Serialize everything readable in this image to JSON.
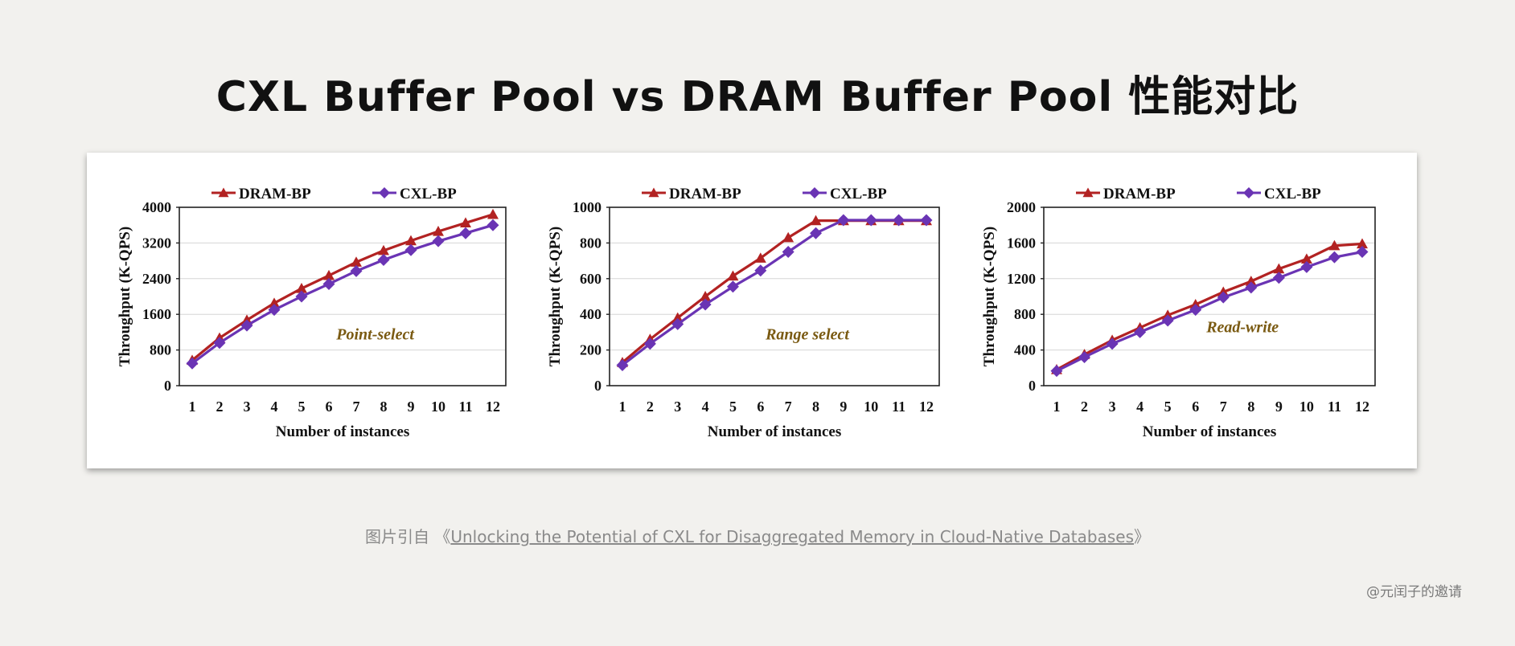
{
  "title": "CXL Buffer Pool vs DRAM Buffer Pool 性能对比",
  "caption": {
    "prefix": "图片引自",
    "open_quote": "《",
    "link_text": "Unlocking the Potential of CXL for Disaggregated Memory in Cloud-Native Databases",
    "close_quote": "》"
  },
  "watermark": "@元闰子的邀请",
  "colors": {
    "dram": "#b22222",
    "cxl": "#6a34b4",
    "annotation": "#7a5a12"
  },
  "chart_data": [
    {
      "type": "line",
      "annotation": "Point-select",
      "xlabel": "Number of instances",
      "ylabel": "Throughput (K-QPS)",
      "x": [
        1,
        2,
        3,
        4,
        5,
        6,
        7,
        8,
        9,
        10,
        11,
        12
      ],
      "ylim": [
        0,
        4000
      ],
      "yticks": [
        0,
        800,
        1600,
        2400,
        3200,
        4000
      ],
      "legend_position": "top",
      "grid": "horizontal",
      "series": [
        {
          "name": "DRAM-BP",
          "marker": "triangle",
          "values": [
            570,
            1070,
            1470,
            1850,
            2180,
            2470,
            2770,
            3030,
            3250,
            3460,
            3650,
            3840
          ]
        },
        {
          "name": "CXL-BP",
          "marker": "diamond",
          "values": [
            500,
            960,
            1350,
            1700,
            2000,
            2280,
            2570,
            2820,
            3040,
            3240,
            3420,
            3600
          ]
        }
      ]
    },
    {
      "type": "line",
      "annotation": "Range select",
      "xlabel": "Number of instances",
      "ylabel": "Throughput (K-QPS)",
      "x": [
        1,
        2,
        3,
        4,
        5,
        6,
        7,
        8,
        9,
        10,
        11,
        12
      ],
      "ylim": [
        0,
        1000
      ],
      "yticks": [
        0,
        200,
        400,
        600,
        800,
        1000
      ],
      "legend_position": "top",
      "grid": "horizontal",
      "series": [
        {
          "name": "DRAM-BP",
          "marker": "triangle",
          "values": [
            130,
            260,
            380,
            500,
            615,
            715,
            830,
            925,
            925,
            925,
            925,
            925
          ]
        },
        {
          "name": "CXL-BP",
          "marker": "diamond",
          "values": [
            115,
            235,
            345,
            455,
            555,
            645,
            750,
            855,
            928,
            928,
            928,
            928
          ]
        }
      ]
    },
    {
      "type": "line",
      "annotation": "Read-write",
      "xlabel": "Number of instances",
      "ylabel": "Throughput (K-QPS)",
      "x": [
        1,
        2,
        3,
        4,
        5,
        6,
        7,
        8,
        9,
        10,
        11,
        12
      ],
      "ylim": [
        0,
        2000
      ],
      "yticks": [
        0,
        400,
        800,
        1200,
        1600,
        2000
      ],
      "legend_position": "top",
      "grid": "horizontal",
      "series": [
        {
          "name": "DRAM-BP",
          "marker": "triangle",
          "values": [
            180,
            350,
            510,
            650,
            790,
            910,
            1050,
            1170,
            1310,
            1420,
            1570,
            1590
          ]
        },
        {
          "name": "CXL-BP",
          "marker": "diamond",
          "values": [
            165,
            320,
            470,
            600,
            730,
            850,
            990,
            1100,
            1210,
            1330,
            1440,
            1500
          ]
        }
      ]
    }
  ]
}
